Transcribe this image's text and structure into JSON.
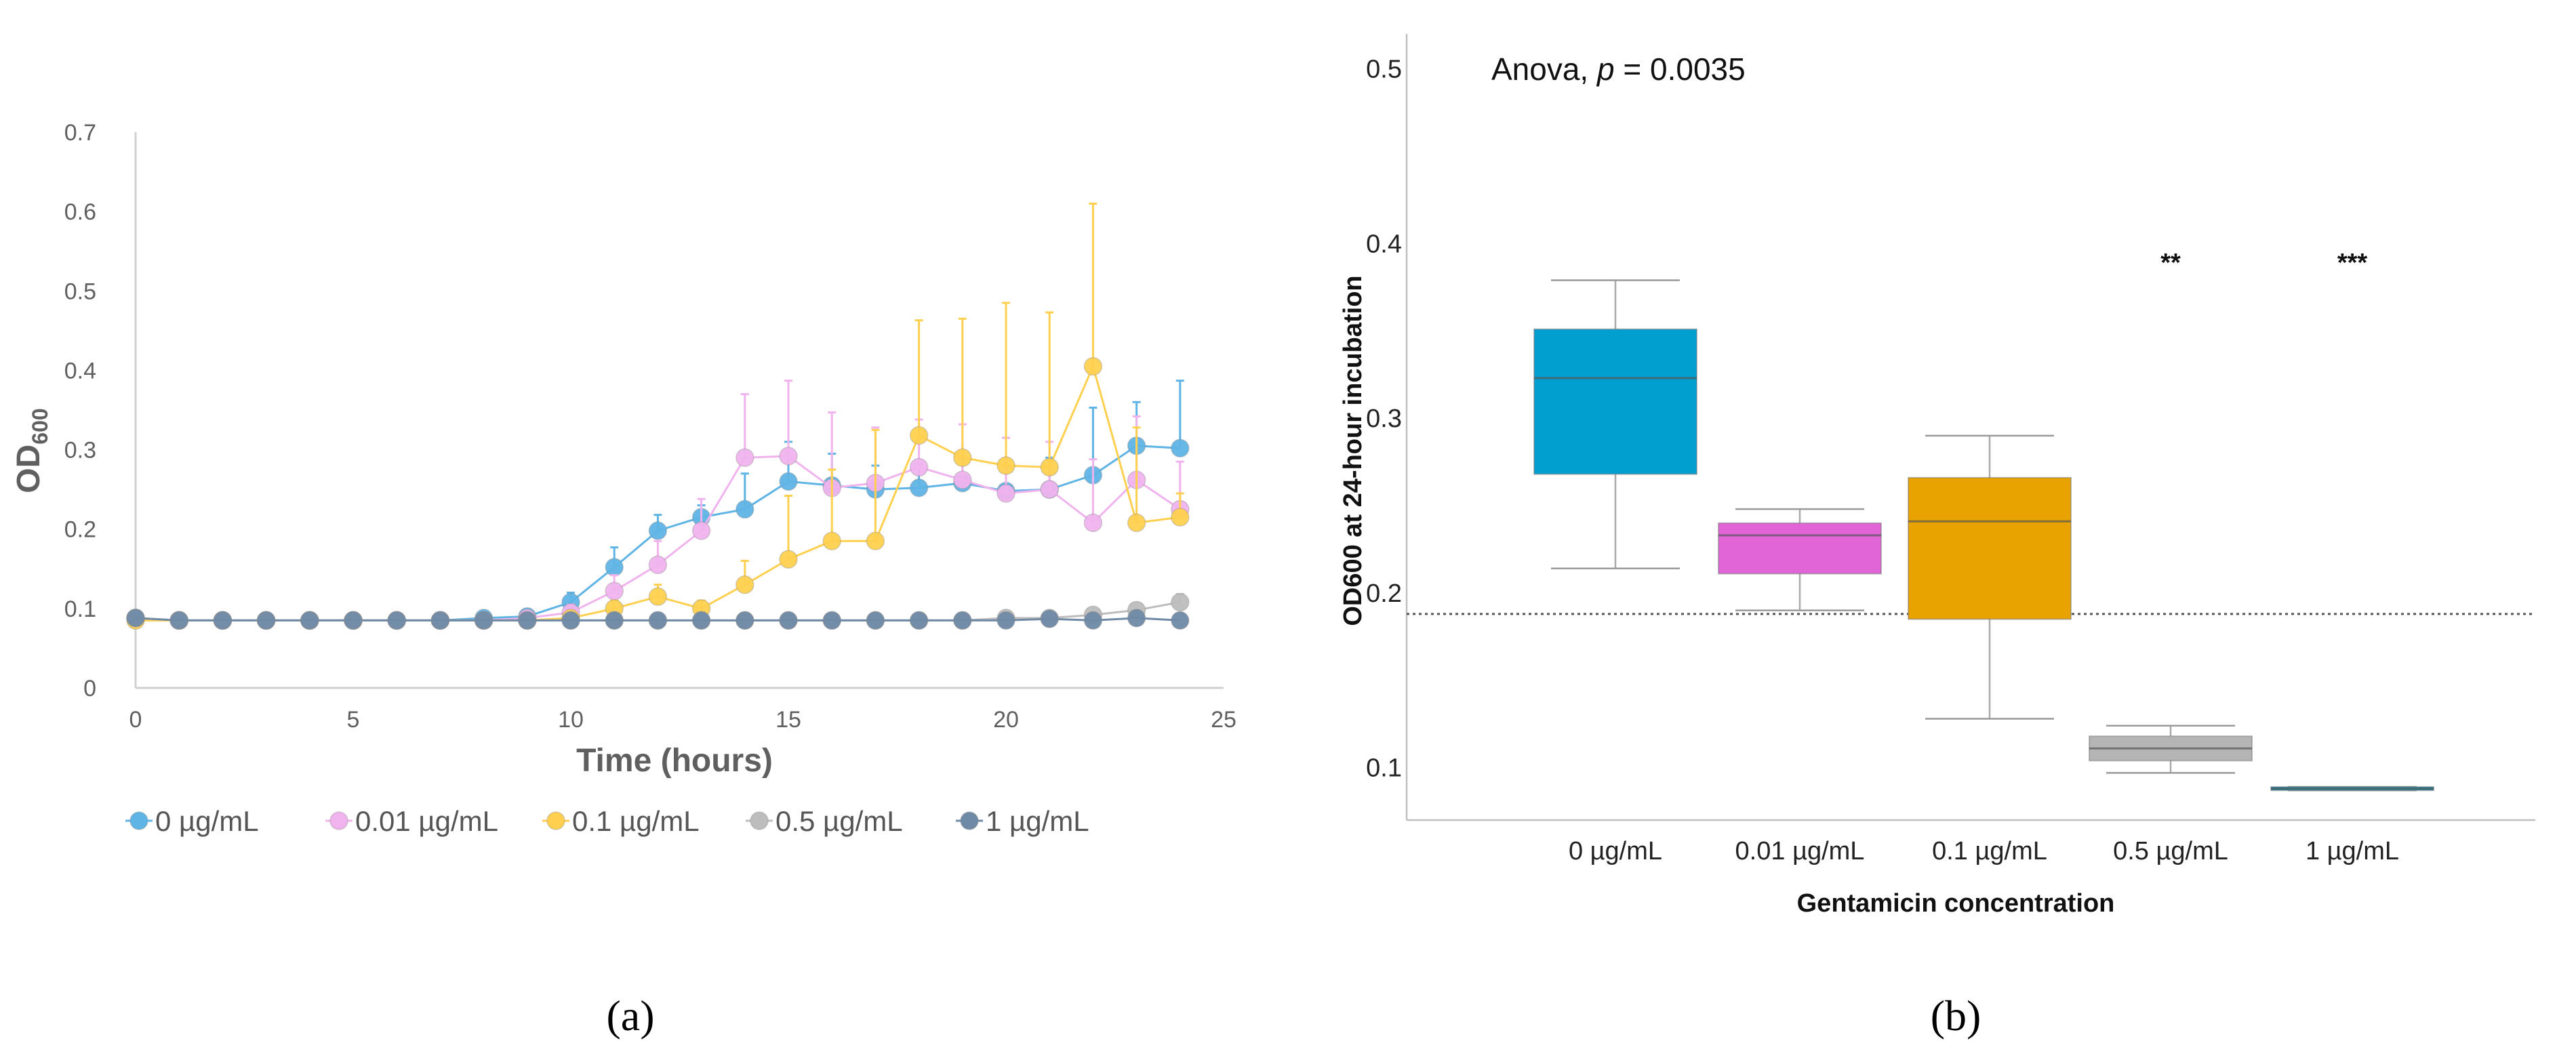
{
  "colors": {
    "s0": "#5fb4e6",
    "s001": "#f0b3ee",
    "s01": "#ffd04f",
    "s05": "#bdbdbd",
    "s1": "#6f8aa6",
    "box0": "#009fcf",
    "box001": "#e265d7",
    "box01": "#e8a300",
    "box05": "#b5b5b5",
    "box1": "#0f8fb4"
  },
  "panel_a_label": "(a)",
  "panel_b_label": "(b)",
  "chart_data": [
    {
      "type": "line",
      "panel": "a",
      "title": "",
      "xlabel": "Time (hours)",
      "ylabel_main": "OD",
      "ylabel_sub": "600",
      "xlim": [
        0,
        25
      ],
      "ylim": [
        0,
        0.7
      ],
      "xticks": [
        0,
        5,
        10,
        15,
        20,
        25
      ],
      "yticks": [
        0,
        0.1,
        0.2,
        0.3,
        0.4,
        0.5,
        0.6,
        0.7
      ],
      "ytick_labels": [
        "0",
        "0.1",
        "0.2",
        "0.3",
        "0.4",
        "0.5",
        "0.6",
        "0.7"
      ],
      "xtick_labels": [
        "0",
        "5",
        "10",
        "15",
        "20",
        "25"
      ],
      "legend_position": "bottom",
      "x": [
        0,
        1,
        2,
        3,
        4,
        5,
        6,
        7,
        8,
        9,
        10,
        11,
        12,
        13,
        14,
        15,
        16,
        17,
        18,
        19,
        20,
        21,
        22,
        23,
        24
      ],
      "series": [
        {
          "name": "0 µg/mL",
          "color_key": "s0",
          "values": [
            0.088,
            0.085,
            0.085,
            0.085,
            0.085,
            0.085,
            0.085,
            0.085,
            0.088,
            0.09,
            0.108,
            0.152,
            0.198,
            0.215,
            0.225,
            0.26,
            0.255,
            0.25,
            0.252,
            0.258,
            0.248,
            0.25,
            0.268,
            0.305,
            0.302
          ],
          "errors": [
            0.004,
            0.002,
            0.002,
            0.002,
            0.002,
            0.002,
            0.002,
            0.002,
            0.005,
            0.005,
            0.012,
            0.025,
            0.02,
            0.015,
            0.045,
            0.05,
            0.04,
            0.03,
            0.03,
            0.03,
            0.03,
            0.04,
            0.085,
            0.055,
            0.085
          ]
        },
        {
          "name": "0.01 µg/mL",
          "color_key": "s001",
          "values": [
            0.088,
            0.085,
            0.085,
            0.085,
            0.085,
            0.085,
            0.085,
            0.085,
            0.085,
            0.088,
            0.095,
            0.122,
            0.155,
            0.198,
            0.29,
            0.292,
            0.252,
            0.258,
            0.278,
            0.262,
            0.245,
            0.25,
            0.208,
            0.262,
            0.225
          ],
          "errors": [
            0.003,
            0.002,
            0.002,
            0.002,
            0.002,
            0.002,
            0.002,
            0.002,
            0.003,
            0.004,
            0.01,
            0.02,
            0.03,
            0.04,
            0.08,
            0.095,
            0.095,
            0.07,
            0.06,
            0.07,
            0.07,
            0.06,
            0.08,
            0.08,
            0.06
          ]
        },
        {
          "name": "0.1 µg/mL",
          "color_key": "s01",
          "values": [
            0.085,
            0.085,
            0.085,
            0.085,
            0.085,
            0.085,
            0.085,
            0.085,
            0.085,
            0.085,
            0.088,
            0.1,
            0.115,
            0.1,
            0.13,
            0.162,
            0.185,
            0.185,
            0.318,
            0.29,
            0.28,
            0.278,
            0.405,
            0.208,
            0.215
          ],
          "errors": [
            0.003,
            0.002,
            0.002,
            0.002,
            0.002,
            0.002,
            0.002,
            0.002,
            0.002,
            0.002,
            0.005,
            0.01,
            0.015,
            0.01,
            0.03,
            0.08,
            0.09,
            0.14,
            0.145,
            0.175,
            0.205,
            0.195,
            0.205,
            0.12,
            0.03
          ]
        },
        {
          "name": "0.5 µg/mL",
          "color_key": "s05",
          "values": [
            0.088,
            0.085,
            0.085,
            0.085,
            0.085,
            0.085,
            0.085,
            0.085,
            0.085,
            0.085,
            0.085,
            0.085,
            0.085,
            0.085,
            0.085,
            0.085,
            0.085,
            0.085,
            0.085,
            0.085,
            0.088,
            0.088,
            0.092,
            0.098,
            0.108
          ],
          "errors": [
            0.002,
            0.002,
            0.002,
            0.002,
            0.002,
            0.002,
            0.002,
            0.002,
            0.002,
            0.002,
            0.002,
            0.002,
            0.002,
            0.002,
            0.002,
            0.002,
            0.002,
            0.002,
            0.002,
            0.002,
            0.003,
            0.003,
            0.004,
            0.006,
            0.01
          ]
        },
        {
          "name": "1 µg/mL",
          "color_key": "s1",
          "values": [
            0.088,
            0.085,
            0.085,
            0.085,
            0.085,
            0.085,
            0.085,
            0.085,
            0.085,
            0.085,
            0.085,
            0.085,
            0.085,
            0.085,
            0.085,
            0.085,
            0.085,
            0.085,
            0.085,
            0.085,
            0.085,
            0.087,
            0.085,
            0.088,
            0.085
          ],
          "errors": [
            0.002,
            0.002,
            0.002,
            0.002,
            0.002,
            0.002,
            0.002,
            0.002,
            0.002,
            0.002,
            0.002,
            0.002,
            0.002,
            0.002,
            0.002,
            0.002,
            0.002,
            0.002,
            0.002,
            0.002,
            0.002,
            0.002,
            0.002,
            0.002,
            0.002
          ]
        }
      ]
    },
    {
      "type": "box",
      "panel": "b",
      "annotation_prefix": "Anova, ",
      "annotation_p": "p",
      "annotation_suffix": " = 0.0035",
      "xlabel": "Gentamicin concentration",
      "ylabel": "OD600 at 24-hour incubation",
      "ylim": [
        0.07,
        0.52
      ],
      "yticks": [
        0.1,
        0.2,
        0.3,
        0.4,
        0.5
      ],
      "ytick_labels": [
        "0.1",
        "0.2",
        "0.3",
        "0.4",
        "0.5"
      ],
      "reference_line": 0.188,
      "categories": [
        "0 µg/mL",
        "0.01 µg/mL",
        "0.1 µg/mL",
        "0.5 µg/mL",
        "1 µg/mL"
      ],
      "boxes": [
        {
          "category": "0 µg/mL",
          "min": 0.214,
          "q1": 0.268,
          "median": 0.323,
          "q3": 0.351,
          "max": 0.379,
          "color_key": "box0",
          "significance": ""
        },
        {
          "category": "0.01 µg/mL",
          "min": 0.19,
          "q1": 0.211,
          "median": 0.233,
          "q3": 0.24,
          "max": 0.248,
          "color_key": "box001",
          "significance": ""
        },
        {
          "category": "0.1 µg/mL",
          "min": 0.128,
          "q1": 0.185,
          "median": 0.241,
          "q3": 0.266,
          "max": 0.29,
          "color_key": "box01",
          "significance": ""
        },
        {
          "category": "0.5 µg/mL",
          "min": 0.097,
          "q1": 0.104,
          "median": 0.111,
          "q3": 0.118,
          "max": 0.124,
          "color_key": "box05",
          "significance": "**"
        },
        {
          "category": "1 µg/mL",
          "min": 0.087,
          "q1": 0.087,
          "median": 0.088,
          "q3": 0.089,
          "max": 0.089,
          "color_key": "box1",
          "significance": "***"
        }
      ]
    }
  ]
}
